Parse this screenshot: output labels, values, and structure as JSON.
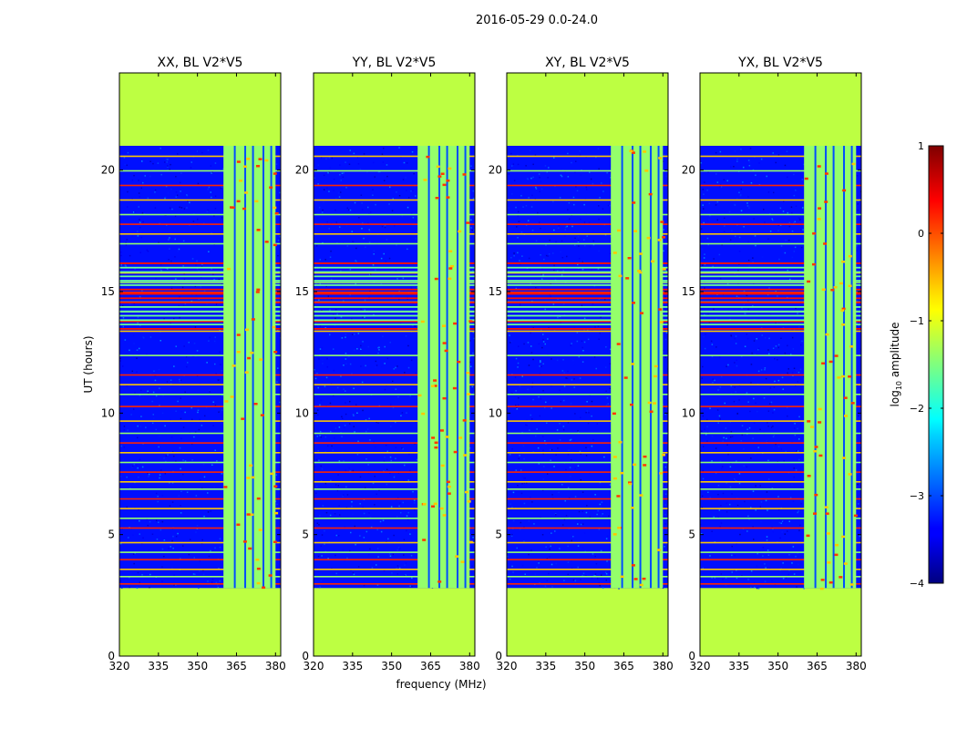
{
  "chart_data": {
    "type": "heatmap",
    "suptitle": "2016-05-29 0.0-24.0",
    "xlabel": "frequency (MHz)",
    "ylabel": "UT (hours)",
    "xlim": [
      320,
      382
    ],
    "ylim": [
      0,
      24
    ],
    "xticks": [
      320,
      335,
      350,
      365,
      380
    ],
    "yticks": [
      0,
      5,
      10,
      15,
      20
    ],
    "xtick_labels": [
      "320",
      "335",
      "350",
      "365",
      "380"
    ],
    "ytick_labels": [
      "0",
      "5",
      "10",
      "15",
      "20"
    ],
    "panels": [
      {
        "title": "XX, BL V2*V5",
        "gap_fill_value": -1.2,
        "band_fill_value": -1.4
      },
      {
        "title": "YY, BL V2*V5",
        "gap_fill_value": -1.2,
        "band_fill_value": -1.4
      },
      {
        "title": "XY, BL V2*V5",
        "gap_fill_value": -1.2,
        "band_fill_value": -1.4
      },
      {
        "title": "YX, BL V2*V5",
        "gap_fill_value": -1.2,
        "band_fill_value": -1.4
      }
    ],
    "data_time_range": [
      2.8,
      21.0
    ],
    "rfi_frequency_band": [
      360,
      380
    ],
    "background_level": -3.3,
    "colorbar": {
      "label_prefix": "log",
      "label_subscript": "10",
      "label_suffix": " amplitude",
      "range": [
        -4,
        1
      ],
      "ticks": [
        -4,
        -3,
        -2,
        -1,
        0,
        1
      ],
      "tick_labels": [
        "−4",
        "−3",
        "−2",
        "−1",
        "0",
        "1"
      ],
      "colormap": "jet"
    }
  }
}
